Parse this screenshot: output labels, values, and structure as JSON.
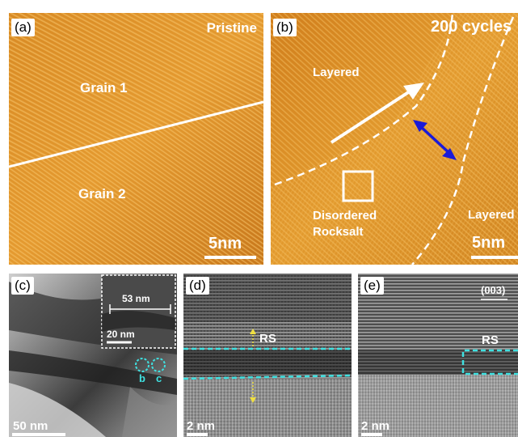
{
  "panels": {
    "a": {
      "label": "(a)",
      "title": "Pristine",
      "grain1": "Grain 1",
      "grain2": "Grain 2",
      "scale": "5nm"
    },
    "b": {
      "label": "(b)",
      "title": "200 cycles",
      "layered_left": "Layered",
      "layered_right": "Layered",
      "disordered_line1": "Disordered",
      "disordered_line2": "Rocksalt",
      "scale": "5nm"
    },
    "c": {
      "label": "(c)",
      "inset_measure": "53 nm",
      "inset_scale": "20 nm",
      "marker_b": "b",
      "marker_c": "c",
      "scale": "50 nm"
    },
    "d": {
      "label": "(d)",
      "rs": "RS",
      "scale": "2 nm"
    },
    "e": {
      "label": "(e)",
      "plane": "(003)",
      "rs": "RS",
      "scale": "2 nm"
    }
  },
  "colors": {
    "orange_lattice": "#e08a1e",
    "cyan_marker": "#3fe0e0",
    "blue_arrow": "#1a1ad8",
    "yellow_arrow": "#f0e040"
  }
}
